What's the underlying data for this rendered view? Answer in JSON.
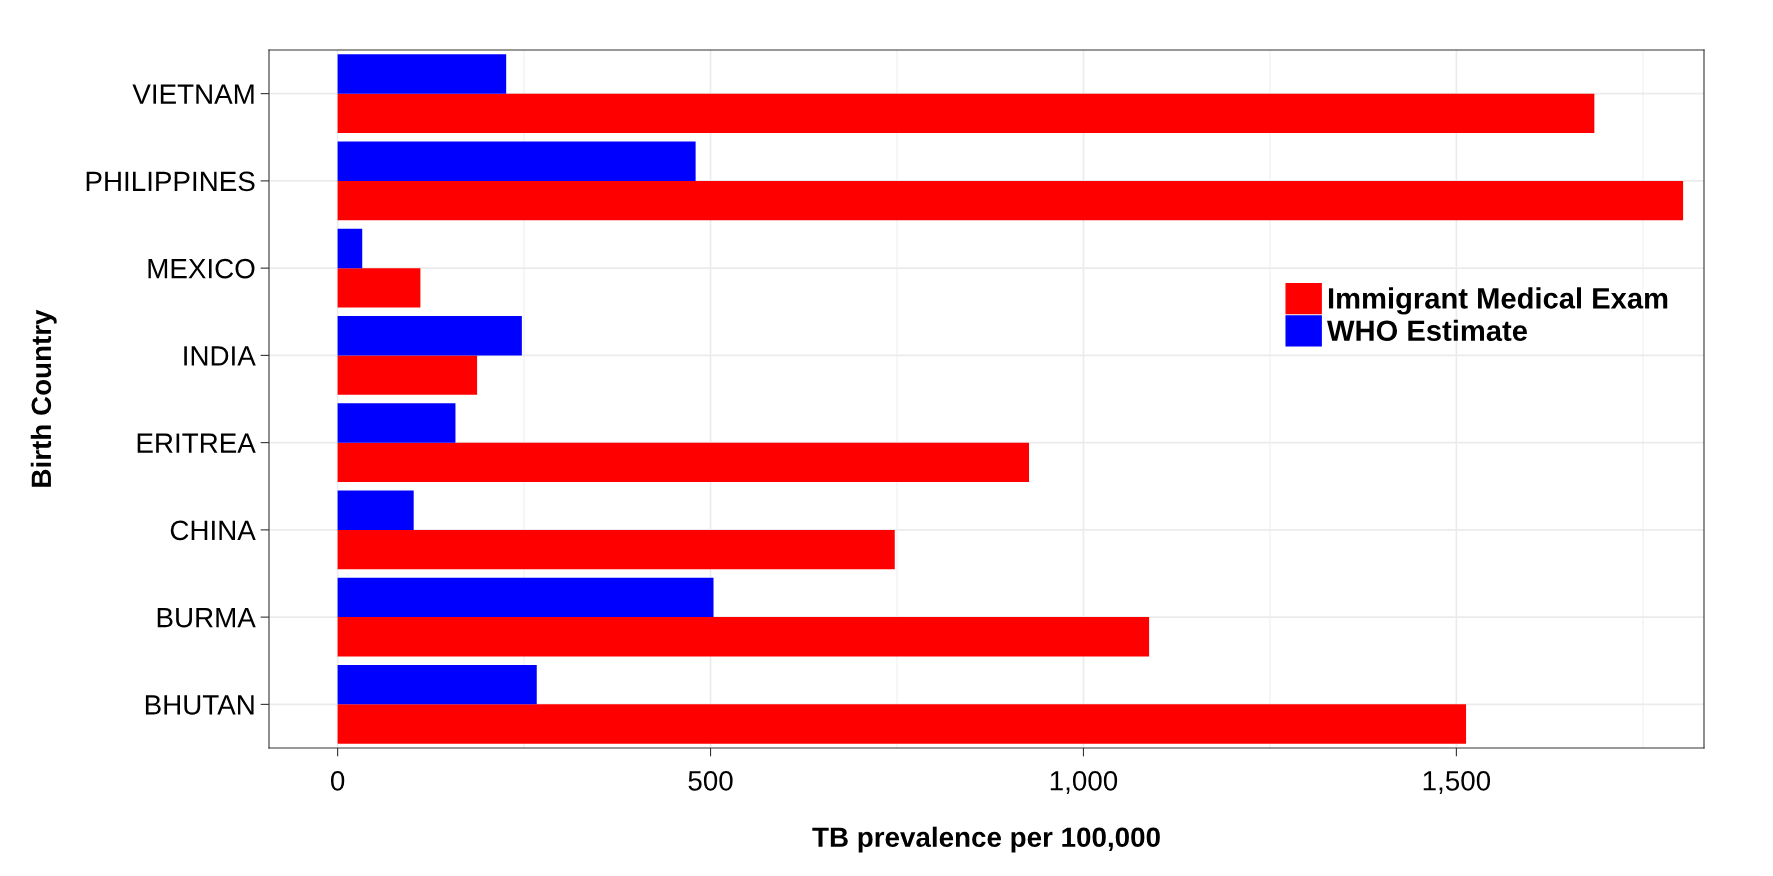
{
  "chart_data": {
    "type": "bar",
    "orientation": "horizontal",
    "xlabel": "TB prevalence per 100,000",
    "ylabel": "Birth Country",
    "categories": [
      "VIETNAM",
      "PHILIPPINES",
      "MEXICO",
      "INDIA",
      "ERITREA",
      "CHINA",
      "BURMA",
      "BHUTAN"
    ],
    "series": [
      {
        "name": "Immigrant Medical Exam",
        "color": "#ff0000",
        "values": [
          1685,
          1804,
          111,
          187,
          927,
          747,
          1088,
          1513
        ]
      },
      {
        "name": "WHO Estimate",
        "color": "#0000ff",
        "values": [
          226,
          480,
          33,
          247,
          158,
          102,
          504,
          267
        ]
      }
    ],
    "xlim": [
      -92,
      1832
    ],
    "xticks": [
      0,
      {
        "value": 250,
        "label": null
      },
      500,
      {
        "value": 750,
        "label": null
      },
      {
        "value": 1000,
        "label": "1,000"
      },
      {
        "value": 1250,
        "label": null
      },
      {
        "value": 1500,
        "label": "1,500"
      },
      {
        "value": 1750,
        "label": null
      }
    ],
    "grid": true,
    "legend": "right"
  }
}
